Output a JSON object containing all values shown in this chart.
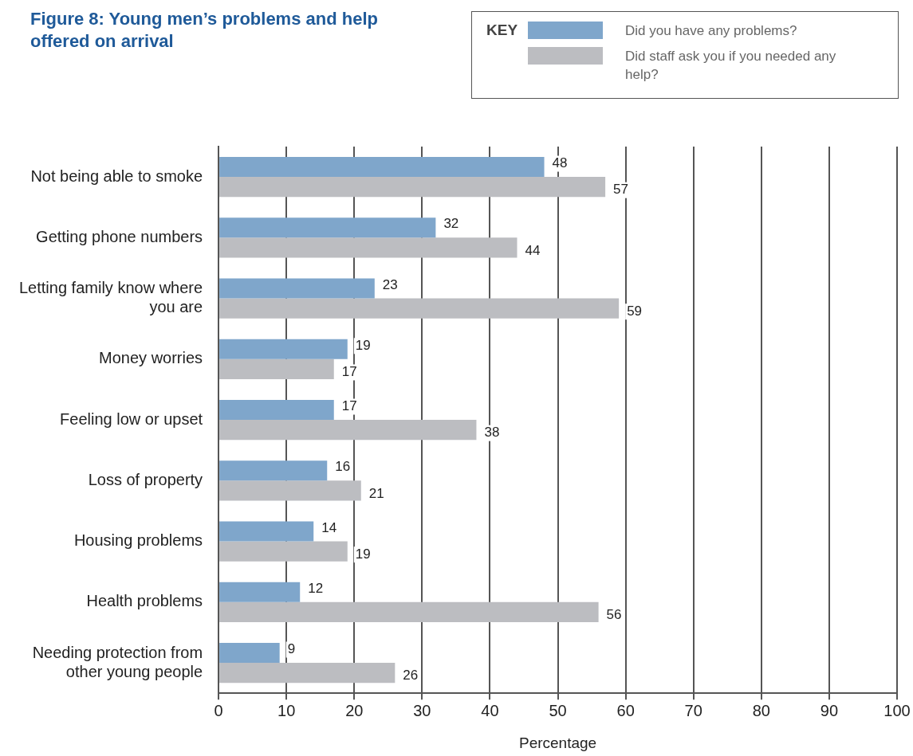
{
  "chart_data": {
    "type": "bar",
    "orientation": "horizontal",
    "title": "Figure 8: Young men’s problems and help offered on arrival",
    "legend_title": "KEY",
    "legend": "top right",
    "xlabel": "Percentage",
    "categories": [
      "Not being able to smoke",
      "Getting phone numbers",
      "Letting family know where you are",
      "Money worries",
      "Feeling low or upset",
      "Loss of property",
      "Housing problems",
      "Health problems",
      "Needing protection from other young people"
    ],
    "series": [
      {
        "name": "Did you have any problems?",
        "color": "#7fa6cb",
        "values": [
          48,
          32,
          23,
          19,
          17,
          16,
          14,
          12,
          9
        ]
      },
      {
        "name": "Did staff ask you if you needed any help?",
        "color": "#bcbdc1",
        "values": [
          57,
          44,
          59,
          17,
          38,
          21,
          19,
          56,
          26
        ]
      }
    ],
    "xlim": [
      0,
      100
    ],
    "xticks": [
      0,
      10,
      20,
      30,
      40,
      50,
      60,
      70,
      80,
      90,
      100
    ],
    "grid": "x",
    "data_labels": true
  }
}
